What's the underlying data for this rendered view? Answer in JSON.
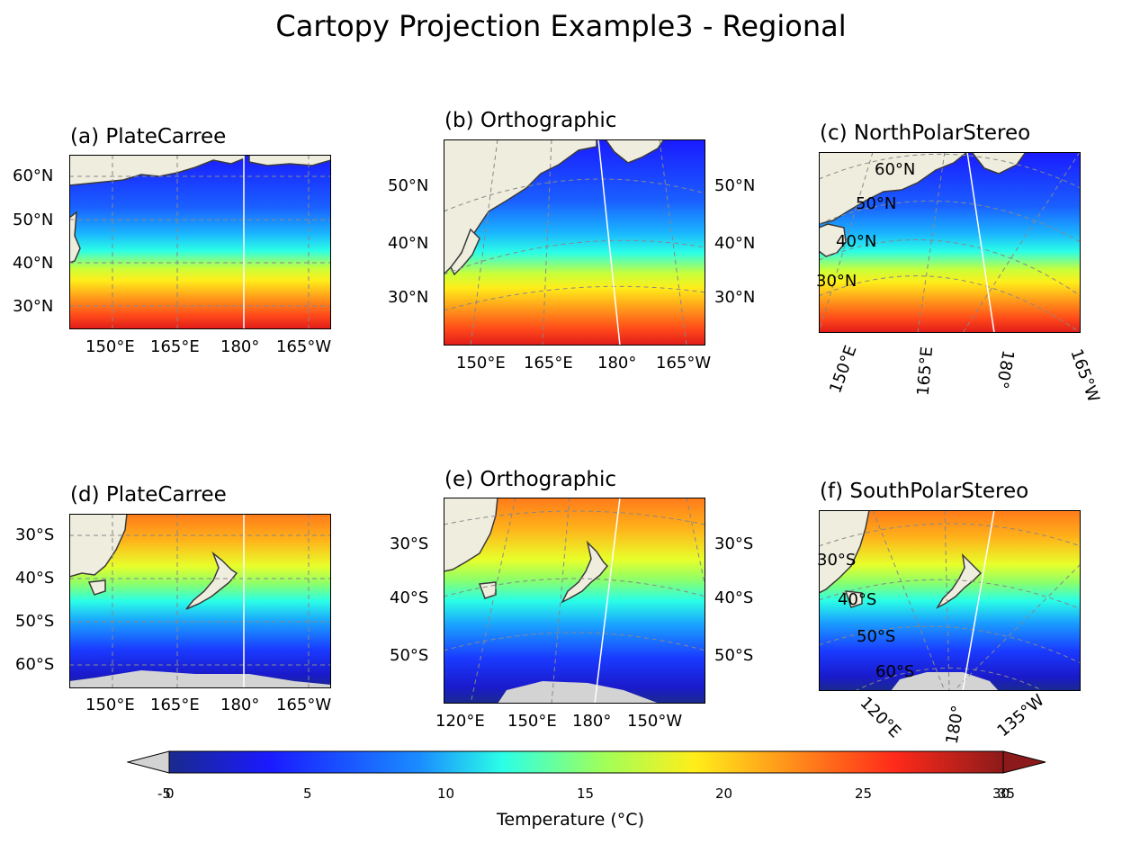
{
  "title": "Cartopy Projection Example3 - Regional",
  "colors": {
    "land": "#efedde",
    "antarctic": "#d3d3d3",
    "coast": "#3a3a3a",
    "grid": "#888888",
    "colormap": [
      "#1a2a8c",
      "#1a1aff",
      "#1aa6ff",
      "#2bffe6",
      "#9fff5a",
      "#ffee1a",
      "#ff8c1a",
      "#ff2a1a",
      "#8c1a1a"
    ]
  },
  "panels": [
    {
      "title": "(a) PlateCarree",
      "left_ticks": [
        "60°N",
        "50°N",
        "40°N",
        "30°N"
      ],
      "right_ticks": [],
      "bottom_ticks": [
        "150°E",
        "165°E",
        "180°",
        "165°W"
      ]
    },
    {
      "title": "(b) Orthographic",
      "left_ticks": [
        "50°N",
        "40°N",
        "30°N"
      ],
      "right_ticks": [
        "50°N",
        "40°N",
        "30°N"
      ],
      "bottom_ticks": [
        "150°E",
        "165°E",
        "180°",
        "165°W"
      ]
    },
    {
      "title": "(c) NorthPolarStereo",
      "left_ticks": [
        "60°N",
        "50°N",
        "40°N",
        "30°N"
      ],
      "right_ticks": [],
      "bottom_ticks": [
        "150°E",
        "165°E",
        "180°",
        "165°W"
      ]
    },
    {
      "title": "(d) PlateCarree",
      "left_ticks": [
        "30°S",
        "40°S",
        "50°S",
        "60°S"
      ],
      "right_ticks": [],
      "bottom_ticks": [
        "150°E",
        "165°E",
        "180°",
        "165°W"
      ]
    },
    {
      "title": "(e) Orthographic",
      "left_ticks": [
        "30°S",
        "40°S",
        "50°S"
      ],
      "right_ticks": [
        "30°S",
        "40°S",
        "50°S"
      ],
      "bottom_ticks": [
        "120°E",
        "150°E",
        "180°",
        "150°W"
      ]
    },
    {
      "title": "(f) SouthPolarStereo",
      "left_ticks": [
        "30°S",
        "40°S",
        "50°S",
        "60°S"
      ],
      "right_ticks": [],
      "bottom_ticks": [
        "120°E",
        "180°",
        "135°W"
      ]
    }
  ],
  "colorbar": {
    "label": "Temperature (°C)",
    "ticks": [
      "-5",
      "0",
      "5",
      "10",
      "15",
      "20",
      "25",
      "30",
      "35"
    ],
    "tick_values": [
      -5,
      0,
      5,
      10,
      15,
      20,
      25,
      30,
      35
    ],
    "range": [
      -5,
      35
    ],
    "extend": "both"
  }
}
